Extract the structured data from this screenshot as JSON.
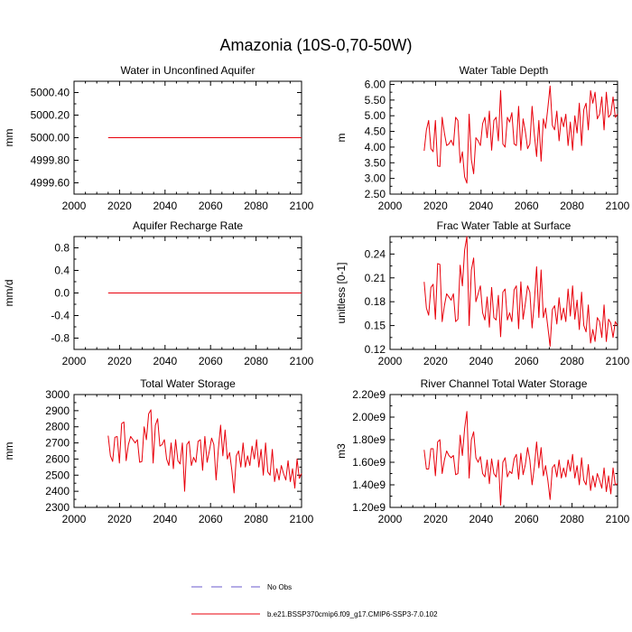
{
  "figure": {
    "title": "Amazonia (10S-0,70-50W)",
    "legend": [
      {
        "label": "No Obs",
        "style": "dashed",
        "color": "#6a5acd"
      },
      {
        "label": "b.e21.BSSP370cmip6.f09_g17.CMIP6-SSP3-7.0.102",
        "style": "solid",
        "color": "#e8000b"
      }
    ]
  },
  "chart_data": [
    {
      "type": "line",
      "title": "Water in Unconfined Aquifer",
      "xlabel": "",
      "ylabel": "mm",
      "xlim": [
        2000,
        2100
      ],
      "ylim": [
        4999.5,
        5000.5
      ],
      "xticks": [
        2000,
        2020,
        2040,
        2060,
        2080,
        2100
      ],
      "xtick_labels": [
        "2000",
        "2020",
        "2040",
        "2060",
        "2080",
        "2100"
      ],
      "yticks": [
        4999.6,
        4999.8,
        5000.0,
        5000.2,
        5000.4
      ],
      "ytick_labels": [
        "4999.60",
        "4999.80",
        "5000.00",
        "5000.20",
        "5000.40"
      ],
      "series": [
        {
          "name": "b.e21.BSSP370cmip6.f09_g17.CMIP6-SSP3-7.0.102",
          "x_start": 2015,
          "x_end": 2100,
          "values": [
            5000.0,
            5000.0
          ]
        }
      ]
    },
    {
      "type": "line",
      "title": "Water Table Depth",
      "xlabel": "",
      "ylabel": "m",
      "xlim": [
        2000,
        2100
      ],
      "ylim": [
        2.5,
        6.1
      ],
      "xticks": [
        2000,
        2020,
        2040,
        2060,
        2080,
        2100
      ],
      "xtick_labels": [
        "2000",
        "2020",
        "2040",
        "2060",
        "2080",
        "2100"
      ],
      "yticks": [
        2.5,
        3.0,
        3.5,
        4.0,
        4.5,
        5.0,
        5.5,
        6.0
      ],
      "ytick_labels": [
        "2.50",
        "3.00",
        "3.50",
        "4.00",
        "4.50",
        "5.00",
        "5.50",
        "6.00"
      ],
      "series": [
        {
          "name": "b.e21.BSSP370cmip6.f09_g17.CMIP6-SSP3-7.0.102",
          "x_start": 2015,
          "x_end": 2100,
          "values": [
            3.88,
            4.55,
            4.85,
            3.95,
            3.85,
            4.85,
            3.4,
            3.38,
            4.95,
            4.45,
            4.05,
            4.1,
            4.22,
            4.05,
            4.95,
            4.85,
            3.5,
            3.85,
            3.05,
            2.85,
            5.05,
            3.6,
            3.15,
            4.3,
            4.2,
            4.05,
            4.75,
            4.95,
            4.3,
            5.15,
            3.9,
            4.85,
            4.95,
            4.2,
            5.8,
            4.1,
            4.0,
            4.95,
            4.8,
            5.1,
            4.1,
            4.05,
            5.3,
            3.9,
            4.9,
            4.5,
            3.95,
            4.1,
            5.3,
            4.4,
            3.7,
            4.85,
            3.55,
            4.9,
            4.6,
            5.25,
            5.95,
            4.7,
            4.55,
            5.15,
            4.2,
            4.95,
            4.65,
            5.05,
            4.05,
            4.8,
            3.9,
            5.0,
            4.45,
            5.4,
            4.05,
            5.2,
            5.4,
            4.55,
            5.8,
            5.4,
            5.75,
            4.9,
            5.05,
            5.6,
            4.55,
            5.75,
            4.95,
            5.05,
            5.6,
            4.95,
            5.05
          ]
        }
      ]
    },
    {
      "type": "line",
      "title": "Aquifer Recharge Rate",
      "xlabel": "",
      "ylabel": "mm/d",
      "xlim": [
        2000,
        2100
      ],
      "ylim": [
        -1.0,
        1.0
      ],
      "xticks": [
        2000,
        2020,
        2040,
        2060,
        2080,
        2100
      ],
      "xtick_labels": [
        "2000",
        "2020",
        "2040",
        "2060",
        "2080",
        "2100"
      ],
      "yticks": [
        -0.8,
        -0.4,
        0.0,
        0.4,
        0.8
      ],
      "ytick_labels": [
        "-0.8",
        "-0.4",
        "0.0",
        "0.4",
        "0.8"
      ],
      "series": [
        {
          "name": "b.e21.BSSP370cmip6.f09_g17.CMIP6-SSP3-7.0.102",
          "x_start": 2015,
          "x_end": 2100,
          "values": [
            0.0,
            0.0
          ]
        }
      ]
    },
    {
      "type": "line",
      "title": "Frac Water Table at Surface",
      "xlabel": "",
      "ylabel": "unitless [0-1]",
      "xlim": [
        2000,
        2100
      ],
      "ylim": [
        0.12,
        0.262
      ],
      "xticks": [
        2000,
        2020,
        2040,
        2060,
        2080,
        2100
      ],
      "xtick_labels": [
        "2000",
        "2020",
        "2040",
        "2060",
        "2080",
        "2100"
      ],
      "yticks": [
        0.12,
        0.15,
        0.18,
        0.21,
        0.24
      ],
      "ytick_labels": [
        "0.12",
        "0.15",
        "0.18",
        "0.21",
        "0.24"
      ],
      "series": [
        {
          "name": "b.e21.BSSP370cmip6.f09_g17.CMIP6-SSP3-7.0.102",
          "x_start": 2015,
          "x_end": 2100,
          "values": [
            0.205,
            0.172,
            0.163,
            0.198,
            0.202,
            0.158,
            0.228,
            0.227,
            0.155,
            0.175,
            0.19,
            0.186,
            0.182,
            0.19,
            0.155,
            0.158,
            0.226,
            0.2,
            0.245,
            0.262,
            0.15,
            0.22,
            0.235,
            0.18,
            0.19,
            0.2,
            0.166,
            0.157,
            0.186,
            0.148,
            0.198,
            0.16,
            0.157,
            0.188,
            0.136,
            0.192,
            0.196,
            0.157,
            0.166,
            0.155,
            0.195,
            0.2,
            0.146,
            0.205,
            0.158,
            0.178,
            0.2,
            0.192,
            0.147,
            0.18,
            0.224,
            0.16,
            0.22,
            0.16,
            0.172,
            0.148,
            0.124,
            0.17,
            0.175,
            0.152,
            0.185,
            0.157,
            0.172,
            0.155,
            0.196,
            0.162,
            0.2,
            0.158,
            0.182,
            0.145,
            0.192,
            0.15,
            0.142,
            0.176,
            0.128,
            0.145,
            0.13,
            0.16,
            0.155,
            0.135,
            0.176,
            0.13,
            0.158,
            0.153,
            0.135,
            0.155,
            0.15
          ]
        }
      ]
    },
    {
      "type": "line",
      "title": "Total Water Storage",
      "xlabel": "",
      "ylabel": "mm",
      "xlim": [
        2000,
        2100
      ],
      "ylim": [
        2300,
        3000
      ],
      "xticks": [
        2000,
        2020,
        2040,
        2060,
        2080,
        2100
      ],
      "xtick_labels": [
        "2000",
        "2020",
        "2040",
        "2060",
        "2080",
        "2100"
      ],
      "yticks": [
        2300,
        2400,
        2500,
        2600,
        2700,
        2800,
        2900,
        3000
      ],
      "ytick_labels": [
        "2300",
        "2400",
        "2500",
        "2600",
        "2700",
        "2800",
        "2900",
        "3000"
      ],
      "series": [
        {
          "name": "b.e21.BSSP370cmip6.f09_g17.CMIP6-SSP3-7.0.102",
          "x_start": 2015,
          "x_end": 2100,
          "values": [
            2745,
            2620,
            2585,
            2735,
            2740,
            2575,
            2820,
            2830,
            2590,
            2690,
            2740,
            2720,
            2700,
            2720,
            2580,
            2585,
            2800,
            2720,
            2880,
            2905,
            2575,
            2810,
            2850,
            2680,
            2690,
            2720,
            2600,
            2560,
            2700,
            2540,
            2720,
            2590,
            2570,
            2700,
            2400,
            2690,
            2710,
            2560,
            2610,
            2580,
            2710,
            2720,
            2530,
            2740,
            2580,
            2650,
            2730,
            2690,
            2470,
            2660,
            2810,
            2620,
            2780,
            2600,
            2640,
            2530,
            2390,
            2620,
            2650,
            2550,
            2700,
            2550,
            2620,
            2560,
            2680,
            2600,
            2720,
            2550,
            2660,
            2500,
            2700,
            2520,
            2500,
            2660,
            2460,
            2540,
            2470,
            2560,
            2510,
            2470,
            2590,
            2460,
            2540,
            2420,
            2600,
            2480,
            2510
          ]
        }
      ]
    },
    {
      "type": "line",
      "title": "River Channel Total Water Storage",
      "xlabel": "",
      "ylabel": "m3",
      "xlim": [
        2000,
        2100
      ],
      "ylim": [
        1200000000.0,
        2200000000.0
      ],
      "xticks": [
        2000,
        2020,
        2040,
        2060,
        2080,
        2100
      ],
      "xtick_labels": [
        "2000",
        "2020",
        "2040",
        "2060",
        "2080",
        "2100"
      ],
      "yticks": [
        1200000000.0,
        1400000000.0,
        1600000000.0,
        1800000000.0,
        2000000000.0,
        2200000000.0
      ],
      "ytick_labels": [
        "1.20e9",
        "1.40e9",
        "1.60e9",
        "1.80e9",
        "2.00e9",
        "2.20e9"
      ],
      "series": [
        {
          "name": "b.e21.BSSP370cmip6.f09_g17.CMIP6-SSP3-7.0.102",
          "x_start": 2015,
          "x_end": 2100,
          "values": [
            1710000000.0,
            1540000000.0,
            1540000000.0,
            1720000000.0,
            1720000000.0,
            1480000000.0,
            1780000000.0,
            1800000000.0,
            1500000000.0,
            1620000000.0,
            1700000000.0,
            1660000000.0,
            1640000000.0,
            1660000000.0,
            1490000000.0,
            1500000000.0,
            1840000000.0,
            1660000000.0,
            1900000000.0,
            2050000000.0,
            1460000000.0,
            1800000000.0,
            1870000000.0,
            1640000000.0,
            1600000000.0,
            1650000000.0,
            1500000000.0,
            1470000000.0,
            1620000000.0,
            1410000000.0,
            1630000000.0,
            1500000000.0,
            1470000000.0,
            1620000000.0,
            1220000000.0,
            1600000000.0,
            1640000000.0,
            1470000000.0,
            1520000000.0,
            1500000000.0,
            1630000000.0,
            1670000000.0,
            1450000000.0,
            1680000000.0,
            1490000000.0,
            1580000000.0,
            1730000000.0,
            1620000000.0,
            1400000000.0,
            1560000000.0,
            1780000000.0,
            1550000000.0,
            1730000000.0,
            1480000000.0,
            1570000000.0,
            1440000000.0,
            1270000000.0,
            1550000000.0,
            1580000000.0,
            1470000000.0,
            1620000000.0,
            1460000000.0,
            1550000000.0,
            1470000000.0,
            1620000000.0,
            1520000000.0,
            1670000000.0,
            1460000000.0,
            1570000000.0,
            1400000000.0,
            1640000000.0,
            1440000000.0,
            1400000000.0,
            1580000000.0,
            1350000000.0,
            1480000000.0,
            1380000000.0,
            1500000000.0,
            1440000000.0,
            1370000000.0,
            1550000000.0,
            1340000000.0,
            1480000000.0,
            1320000000.0,
            1550000000.0,
            1400000000.0,
            1410000000.0
          ]
        }
      ]
    }
  ]
}
